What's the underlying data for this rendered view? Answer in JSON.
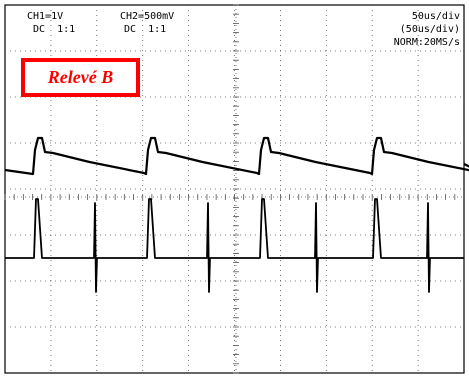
{
  "scope": {
    "ch1": {
      "scale": "CH1=1V",
      "coupling": "DC  1:1"
    },
    "ch2": {
      "scale": "CH2=500mV",
      "coupling": "DC  1:1"
    },
    "timebase": {
      "main": "50us/div",
      "zoom": "(50us/div)",
      "acquisition": "NORM:20MS/s"
    },
    "annotation": {
      "label": "Relevé B",
      "color": "#ff0000"
    },
    "grid": {
      "divisions_x": 10,
      "divisions_y": 8,
      "color": "#555555"
    },
    "trace_color": "#000000"
  }
}
